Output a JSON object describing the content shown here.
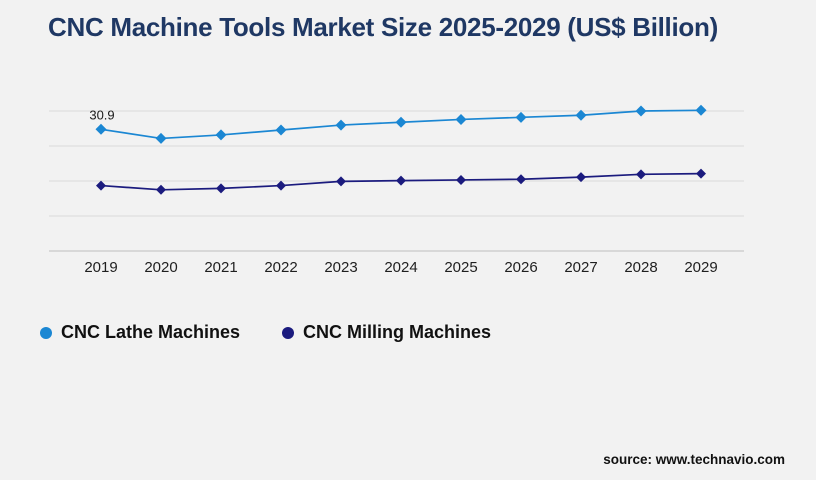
{
  "page": {
    "background_color": "#f2f2f2"
  },
  "header": {
    "title": "CNC Machine Tools Market Size 2025-2029 (US$ Billion)",
    "title_color": "#1f3864"
  },
  "chart_data": {
    "type": "line",
    "title": "CNC Machine Tools Market Size 2025-2029 (US$ Billion)",
    "xlabel": "",
    "ylabel": "",
    "categories": [
      "2019",
      "2020",
      "2021",
      "2022",
      "2023",
      "2024",
      "2025",
      "2026",
      "2027",
      "2028",
      "2029"
    ],
    "series": [
      {
        "name": "CNC Lathe Machines",
        "color": "#1b87d3",
        "marker": "diamond",
        "values": [
          30.9,
          29.6,
          30.1,
          30.8,
          31.5,
          31.9,
          32.3,
          32.6,
          32.9,
          33.5,
          33.6
        ]
      },
      {
        "name": "CNC Milling Machines",
        "color": "#1b1b7e",
        "marker": "diamond",
        "values": [
          22.9,
          22.3,
          22.5,
          22.9,
          23.5,
          23.6,
          23.7,
          23.8,
          24.1,
          24.5,
          24.6
        ]
      }
    ],
    "annotations": [
      {
        "text": "30.9",
        "series": 0,
        "index": 0
      }
    ],
    "ylim": [
      13.6,
      33.5
    ],
    "gridlines": 5,
    "grid": true,
    "y_axis_labels_visible": false,
    "legend_position": "bottom-left",
    "grid_color": "#d9d9d9",
    "axis_color": "#bfbfbf",
    "tick_label_color": "#1f1f1f"
  },
  "legend": {
    "items": [
      {
        "label": "CNC Lathe Machines",
        "color": "#1b87d3"
      },
      {
        "label": "CNC Milling Machines",
        "color": "#1b1b7e"
      }
    ]
  },
  "footer": {
    "source": "source: www.technavio.com"
  }
}
